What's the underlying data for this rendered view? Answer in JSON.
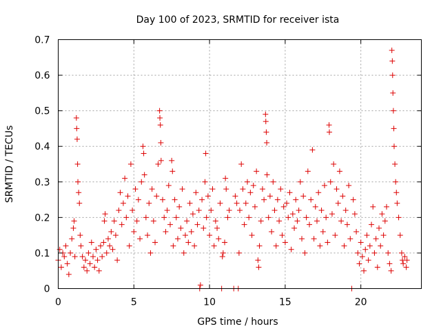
{
  "chart_data": {
    "type": "scatter",
    "title": "Day 100 of 2023, SRMTID for receiver ista",
    "xlabel": "GPS time / hours",
    "ylabel": "SRMTID / TECUs",
    "xlim": [
      0,
      24
    ],
    "ylim": [
      0,
      0.7
    ],
    "xticks": [
      0,
      5,
      10,
      15,
      20
    ],
    "xtick_labels": [
      "0",
      "5",
      "10",
      "15",
      "20"
    ],
    "yticks": [
      0,
      0.1,
      0.2,
      0.3,
      0.4,
      0.5,
      0.6,
      0.7
    ],
    "ytick_labels": [
      "0",
      "0.1",
      "0.2",
      "0.3",
      "0.4",
      "0.5",
      "0.6",
      "0.7"
    ],
    "grid": true,
    "marker": "plus",
    "color": "#dd0000",
    "series": [
      {
        "name": "SRMTID",
        "points": [
          [
            0.0,
            0.08
          ],
          [
            0.1,
            0.11
          ],
          [
            0.2,
            0.06
          ],
          [
            0.3,
            0.1
          ],
          [
            0.4,
            0.09
          ],
          [
            0.5,
            0.12
          ],
          [
            0.6,
            0.07
          ],
          [
            0.7,
            0.04
          ],
          [
            0.8,
            0.1
          ],
          [
            0.9,
            0.14
          ],
          [
            1.0,
            0.17
          ],
          [
            1.05,
            0.19
          ],
          [
            1.1,
            0.09
          ],
          [
            1.2,
            0.48
          ],
          [
            1.22,
            0.45
          ],
          [
            1.25,
            0.42
          ],
          [
            1.28,
            0.35
          ],
          [
            1.3,
            0.3
          ],
          [
            1.35,
            0.27
          ],
          [
            1.4,
            0.24
          ],
          [
            1.45,
            0.15
          ],
          [
            1.5,
            0.12
          ],
          [
            1.6,
            0.09
          ],
          [
            1.7,
            0.06
          ],
          [
            1.8,
            0.08
          ],
          [
            1.9,
            0.05
          ],
          [
            2.0,
            0.1
          ],
          [
            2.1,
            0.07
          ],
          [
            2.2,
            0.13
          ],
          [
            2.3,
            0.09
          ],
          [
            2.4,
            0.06
          ],
          [
            2.5,
            0.11
          ],
          [
            2.6,
            0.08
          ],
          [
            2.7,
            0.05
          ],
          [
            2.8,
            0.12
          ],
          [
            2.9,
            0.09
          ],
          [
            3.0,
            0.13
          ],
          [
            3.05,
            0.19
          ],
          [
            3.1,
            0.21
          ],
          [
            3.2,
            0.1
          ],
          [
            3.3,
            0.14
          ],
          [
            3.4,
            0.12
          ],
          [
            3.5,
            0.16
          ],
          [
            3.6,
            0.11
          ],
          [
            3.7,
            0.19
          ],
          [
            3.8,
            0.15
          ],
          [
            3.9,
            0.08
          ],
          [
            4.0,
            0.22
          ],
          [
            4.1,
            0.27
          ],
          [
            4.2,
            0.18
          ],
          [
            4.3,
            0.24
          ],
          [
            4.4,
            0.31
          ],
          [
            4.5,
            0.2
          ],
          [
            4.6,
            0.26
          ],
          [
            4.7,
            0.12
          ],
          [
            4.8,
            0.35
          ],
          [
            4.9,
            0.22
          ],
          [
            5.0,
            0.16
          ],
          [
            5.1,
            0.28
          ],
          [
            5.2,
            0.19
          ],
          [
            5.3,
            0.25
          ],
          [
            5.4,
            0.14
          ],
          [
            5.5,
            0.3
          ],
          [
            5.6,
            0.4
          ],
          [
            5.65,
            0.38
          ],
          [
            5.7,
            0.32
          ],
          [
            5.8,
            0.2
          ],
          [
            5.9,
            0.15
          ],
          [
            6.0,
            0.24
          ],
          [
            6.1,
            0.1
          ],
          [
            6.2,
            0.28
          ],
          [
            6.3,
            0.19
          ],
          [
            6.4,
            0.13
          ],
          [
            6.5,
            0.26
          ],
          [
            6.6,
            0.35
          ],
          [
            6.7,
            0.5
          ],
          [
            6.72,
            0.48
          ],
          [
            6.75,
            0.46
          ],
          [
            6.78,
            0.41
          ],
          [
            6.8,
            0.36
          ],
          [
            6.9,
            0.25
          ],
          [
            7.0,
            0.2
          ],
          [
            7.1,
            0.16
          ],
          [
            7.2,
            0.22
          ],
          [
            7.3,
            0.29
          ],
          [
            7.4,
            0.18
          ],
          [
            7.5,
            0.36
          ],
          [
            7.55,
            0.33
          ],
          [
            7.6,
            0.12
          ],
          [
            7.7,
            0.25
          ],
          [
            7.8,
            0.2
          ],
          [
            7.9,
            0.14
          ],
          [
            8.0,
            0.23
          ],
          [
            8.1,
            0.17
          ],
          [
            8.2,
            0.28
          ],
          [
            8.3,
            0.1
          ],
          [
            8.4,
            0.15
          ],
          [
            8.5,
            0.19
          ],
          [
            8.6,
            0.13
          ],
          [
            8.7,
            0.24
          ],
          [
            8.8,
            0.16
          ],
          [
            8.9,
            0.21
          ],
          [
            9.0,
            0.12
          ],
          [
            9.1,
            0.27
          ],
          [
            9.2,
            0.18
          ],
          [
            9.3,
            0.22
          ],
          [
            9.35,
            0.0
          ],
          [
            9.4,
            0.01
          ],
          [
            9.5,
            0.25
          ],
          [
            9.6,
            0.17
          ],
          [
            9.7,
            0.3
          ],
          [
            9.75,
            0.38
          ],
          [
            9.8,
            0.2
          ],
          [
            9.9,
            0.26
          ],
          [
            10.0,
            0.15
          ],
          [
            10.1,
            0.22
          ],
          [
            10.2,
            0.28
          ],
          [
            10.3,
            0.12
          ],
          [
            10.4,
            0.19
          ],
          [
            10.5,
            0.17
          ],
          [
            10.6,
            0.14
          ],
          [
            10.7,
            0.24
          ],
          [
            10.8,
            0.0
          ],
          [
            10.85,
            0.09
          ],
          [
            10.9,
            0.1
          ],
          [
            11.0,
            0.13
          ],
          [
            11.05,
            0.31
          ],
          [
            11.1,
            0.28
          ],
          [
            11.2,
            0.2
          ],
          [
            11.3,
            0.22
          ],
          [
            11.6,
            0.0
          ],
          [
            11.9,
            0.0
          ],
          [
            11.95,
            0.1
          ],
          [
            11.7,
            0.26
          ],
          [
            11.8,
            0.24
          ],
          [
            12.0,
            0.22
          ],
          [
            12.1,
            0.35
          ],
          [
            12.2,
            0.28
          ],
          [
            12.3,
            0.18
          ],
          [
            12.4,
            0.24
          ],
          [
            12.5,
            0.3
          ],
          [
            12.6,
            0.2
          ],
          [
            12.7,
            0.27
          ],
          [
            12.8,
            0.15
          ],
          [
            12.9,
            0.29
          ],
          [
            13.0,
            0.23
          ],
          [
            13.1,
            0.33
          ],
          [
            13.2,
            0.08
          ],
          [
            13.25,
            0.06
          ],
          [
            13.3,
            0.12
          ],
          [
            13.4,
            0.19
          ],
          [
            13.5,
            0.28
          ],
          [
            13.6,
            0.25
          ],
          [
            13.7,
            0.49
          ],
          [
            13.72,
            0.47
          ],
          [
            13.75,
            0.44
          ],
          [
            13.78,
            0.41
          ],
          [
            13.8,
            0.32
          ],
          [
            13.9,
            0.2
          ],
          [
            14.0,
            0.26
          ],
          [
            14.1,
            0.16
          ],
          [
            14.2,
            0.3
          ],
          [
            14.3,
            0.22
          ],
          [
            14.4,
            0.12
          ],
          [
            14.5,
            0.25
          ],
          [
            14.6,
            0.19
          ],
          [
            14.7,
            0.28
          ],
          [
            14.8,
            0.15
          ],
          [
            14.9,
            0.23
          ],
          [
            15.0,
            0.13
          ],
          [
            15.1,
            0.24
          ],
          [
            15.2,
            0.2
          ],
          [
            15.3,
            0.27
          ],
          [
            15.4,
            0.11
          ],
          [
            15.5,
            0.21
          ],
          [
            15.6,
            0.17
          ],
          [
            15.7,
            0.25
          ],
          [
            15.8,
            0.19
          ],
          [
            15.9,
            0.22
          ],
          [
            16.0,
            0.3
          ],
          [
            16.1,
            0.14
          ],
          [
            16.2,
            0.26
          ],
          [
            16.3,
            0.1
          ],
          [
            16.4,
            0.2
          ],
          [
            16.5,
            0.33
          ],
          [
            16.6,
            0.18
          ],
          [
            16.7,
            0.25
          ],
          [
            16.8,
            0.39
          ],
          [
            16.9,
            0.14
          ],
          [
            17.0,
            0.23
          ],
          [
            17.1,
            0.19
          ],
          [
            17.2,
            0.27
          ],
          [
            17.3,
            0.12
          ],
          [
            17.4,
            0.22
          ],
          [
            17.5,
            0.16
          ],
          [
            17.6,
            0.29
          ],
          [
            17.7,
            0.2
          ],
          [
            17.8,
            0.13
          ],
          [
            17.9,
            0.46
          ],
          [
            17.92,
            0.44
          ],
          [
            18.0,
            0.3
          ],
          [
            18.1,
            0.21
          ],
          [
            18.2,
            0.35
          ],
          [
            18.3,
            0.15
          ],
          [
            18.4,
            0.28
          ],
          [
            18.5,
            0.24
          ],
          [
            18.6,
            0.33
          ],
          [
            18.7,
            0.19
          ],
          [
            18.8,
            0.26
          ],
          [
            18.9,
            0.12
          ],
          [
            19.0,
            0.22
          ],
          [
            19.1,
            0.18
          ],
          [
            19.2,
            0.29
          ],
          [
            19.3,
            0.14
          ],
          [
            19.4,
            0.0
          ],
          [
            19.5,
            0.25
          ],
          [
            19.6,
            0.21
          ],
          [
            19.7,
            0.16
          ],
          [
            19.8,
            0.1
          ],
          [
            19.9,
            0.07
          ],
          [
            20.0,
            0.13
          ],
          [
            20.1,
            0.09
          ],
          [
            20.2,
            0.05
          ],
          [
            20.3,
            0.11
          ],
          [
            20.4,
            0.15
          ],
          [
            20.5,
            0.08
          ],
          [
            20.6,
            0.12
          ],
          [
            20.7,
            0.18
          ],
          [
            20.8,
            0.23
          ],
          [
            20.9,
            0.1
          ],
          [
            21.0,
            0.14
          ],
          [
            21.1,
            0.06
          ],
          [
            21.2,
            0.17
          ],
          [
            21.3,
            0.12
          ],
          [
            21.4,
            0.21
          ],
          [
            21.5,
            0.15
          ],
          [
            21.6,
            0.19
          ],
          [
            21.7,
            0.23
          ],
          [
            21.8,
            0.1
          ],
          [
            21.9,
            0.07
          ],
          [
            22.0,
            0.05
          ],
          [
            22.05,
            0.67
          ],
          [
            22.08,
            0.64
          ],
          [
            22.1,
            0.6
          ],
          [
            22.12,
            0.55
          ],
          [
            22.15,
            0.5
          ],
          [
            22.18,
            0.45
          ],
          [
            22.2,
            0.4
          ],
          [
            22.25,
            0.35
          ],
          [
            22.3,
            0.3
          ],
          [
            22.35,
            0.27
          ],
          [
            22.4,
            0.24
          ],
          [
            22.5,
            0.2
          ],
          [
            22.6,
            0.15
          ],
          [
            22.7,
            0.1
          ],
          [
            22.75,
            0.08
          ],
          [
            22.8,
            0.07
          ],
          [
            22.9,
            0.09
          ],
          [
            23.0,
            0.06
          ],
          [
            23.05,
            0.08
          ]
        ]
      }
    ]
  }
}
